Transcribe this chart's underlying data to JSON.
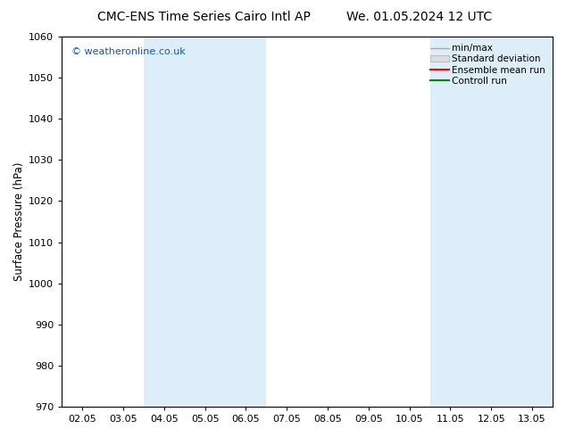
{
  "title_left": "CMC-ENS Time Series Cairo Intl AP",
  "title_right": "We. 01.05.2024 12 UTC",
  "ylabel": "Surface Pressure (hPa)",
  "ylim": [
    970,
    1060
  ],
  "yticks": [
    970,
    980,
    990,
    1000,
    1010,
    1020,
    1030,
    1040,
    1050,
    1060
  ],
  "x_labels": [
    "02.05",
    "03.05",
    "04.05",
    "05.05",
    "06.05",
    "07.05",
    "08.05",
    "09.05",
    "10.05",
    "11.05",
    "12.05",
    "13.05"
  ],
  "shade_bands": [
    {
      "xstart": 2,
      "xend": 4
    },
    {
      "xstart": 9,
      "xend": 12
    }
  ],
  "shade_color": "#ddeef8",
  "background_color": "#ffffff",
  "watermark": "© weatheronline.co.uk",
  "legend_labels": [
    "min/max",
    "Standard deviation",
    "Ensemble mean run",
    "Controll run"
  ],
  "legend_line_colors": [
    "#aaaaaa",
    "#cccccc",
    "#ff0000",
    "#008800"
  ],
  "title_fontsize": 10,
  "tick_fontsize": 8,
  "ylabel_fontsize": 8.5
}
